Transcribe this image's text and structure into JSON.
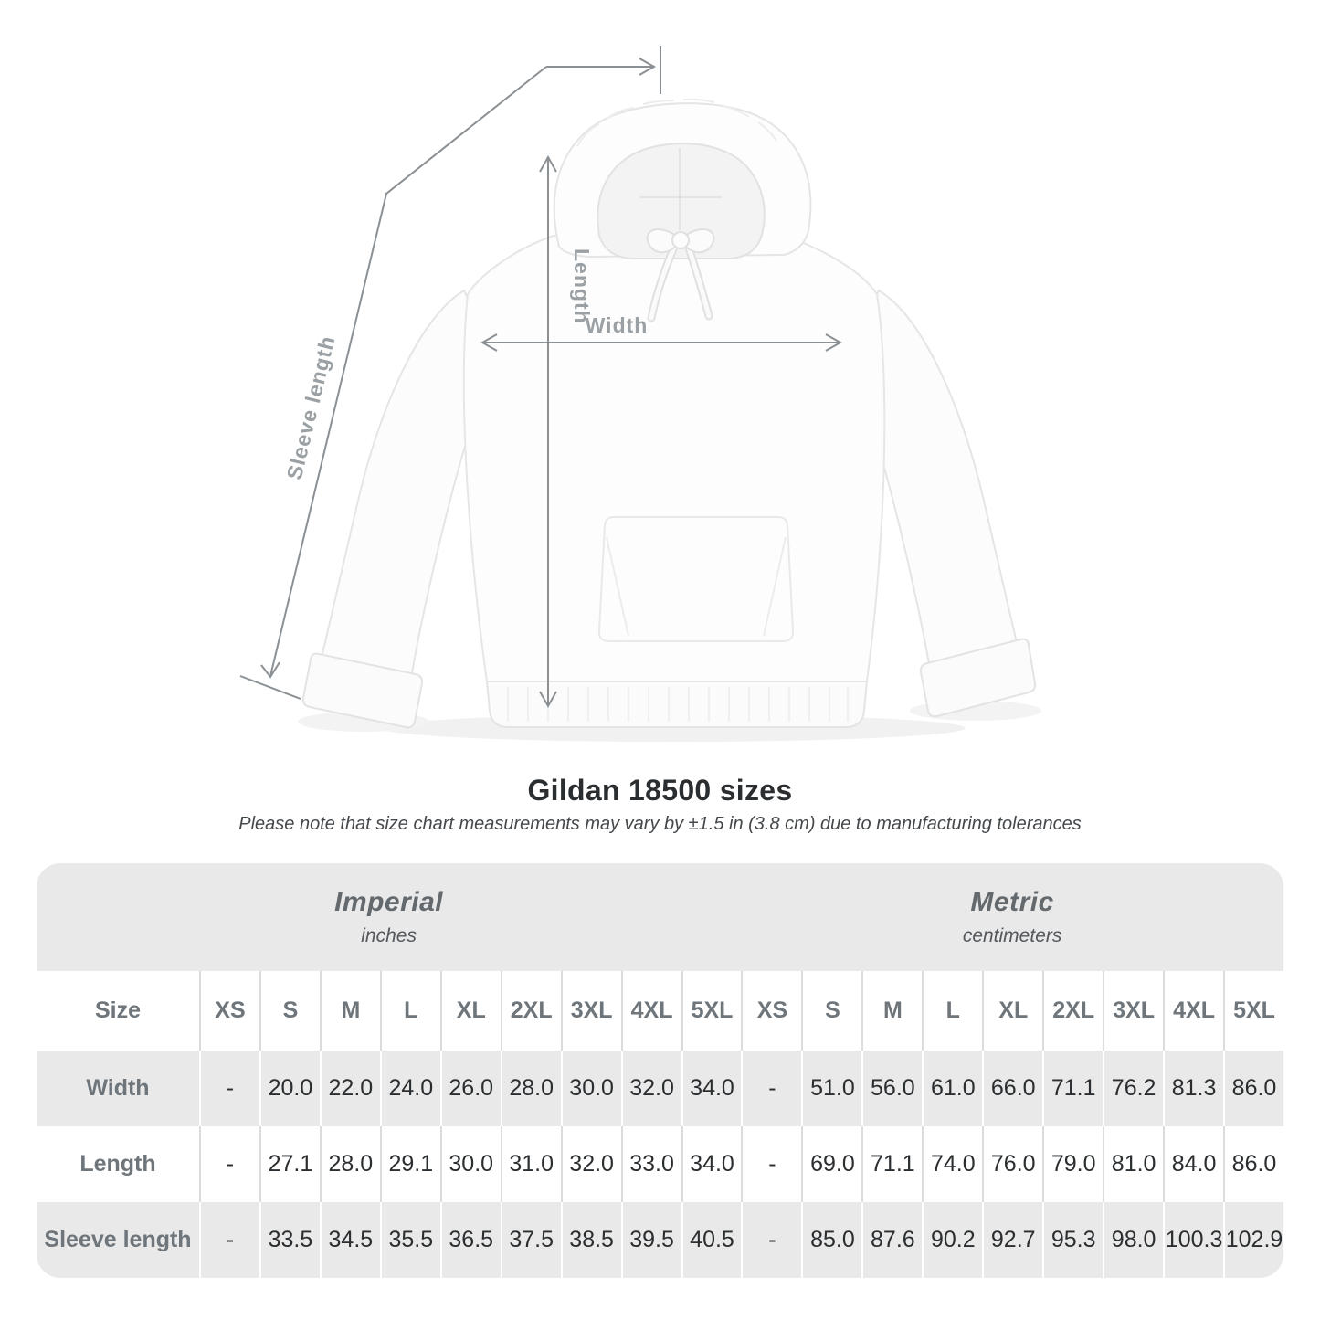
{
  "header": {
    "title": "Gildan 18500 sizes",
    "note": "Please note that size chart measurements may vary by ±1.5 in (3.8 cm) due to manufacturing tolerances"
  },
  "diagram": {
    "length_label": "Length",
    "width_label": "Width",
    "sleeve_length_label": "Sleeve length",
    "line_color": "#8b9094",
    "label_color": "#9aa0a4"
  },
  "size_table": {
    "sections": [
      {
        "name": "Imperial",
        "unit": "inches"
      },
      {
        "name": "Metric",
        "unit": "centimeters"
      }
    ],
    "corner_label": "Size",
    "size_columns": [
      "XS",
      "S",
      "M",
      "L",
      "XL",
      "2XL",
      "3XL",
      "4XL",
      "5XL"
    ],
    "rows": [
      {
        "label": "Width",
        "imperial": [
          "-",
          "20.0",
          "22.0",
          "24.0",
          "26.0",
          "28.0",
          "30.0",
          "32.0",
          "34.0"
        ],
        "metric": [
          "-",
          "51.0",
          "56.0",
          "61.0",
          "66.0",
          "71.1",
          "76.2",
          "81.3",
          "86.0"
        ]
      },
      {
        "label": "Length",
        "imperial": [
          "-",
          "27.1",
          "28.0",
          "29.1",
          "30.0",
          "31.0",
          "32.0",
          "33.0",
          "34.0"
        ],
        "metric": [
          "-",
          "69.0",
          "71.1",
          "74.0",
          "76.0",
          "79.0",
          "81.0",
          "84.0",
          "86.0"
        ]
      },
      {
        "label": "Sleeve length",
        "imperial": [
          "-",
          "33.5",
          "34.5",
          "35.5",
          "36.5",
          "37.5",
          "38.5",
          "39.5",
          "40.5"
        ],
        "metric": [
          "-",
          "85.0",
          "87.6",
          "90.2",
          "92.7",
          "95.3",
          "98.0",
          "100.3",
          "102.9"
        ]
      }
    ],
    "colors": {
      "band_bg": "#e9e9e9",
      "alt_row_bg": "#e9e9e9",
      "white_row_bg": "#ffffff"
    }
  }
}
